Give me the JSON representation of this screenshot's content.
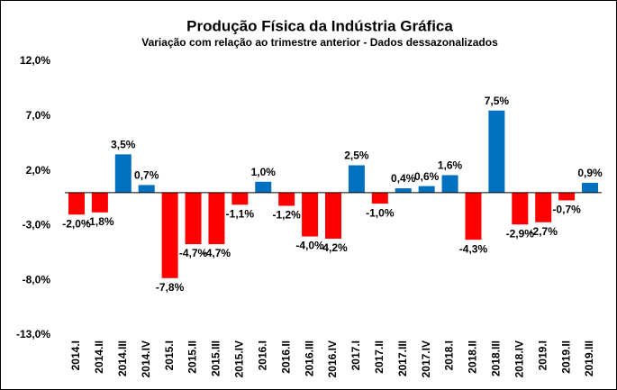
{
  "chart_data": {
    "type": "bar",
    "title": "Produção Física da Indústria Gráfica",
    "subtitle": "Variação com relação ao trimestre anterior - Dados dessazonalizados",
    "categories": [
      "2014.I",
      "2014.II",
      "2014.III",
      "2014.IV",
      "2015.I",
      "2015.II",
      "2015.III",
      "2015.IV",
      "2016.I",
      "2016.II",
      "2016.III",
      "2016.IV",
      "2017.I",
      "2017.II",
      "2017.III",
      "2017.IV",
      "2018.I",
      "2018.II",
      "2018.III",
      "2018.IV",
      "2019.I",
      "2019.II",
      "2019.III"
    ],
    "values": [
      -2.0,
      -1.8,
      3.5,
      0.7,
      -7.8,
      -4.7,
      -4.7,
      -1.1,
      1.0,
      -1.2,
      -4.0,
      -4.2,
      2.5,
      -1.0,
      0.4,
      0.6,
      1.6,
      -4.3,
      7.5,
      -2.9,
      -2.7,
      -0.7,
      0.9
    ],
    "value_labels": [
      "-2,0%",
      "-1,8%",
      "3,5%",
      "0,7%",
      "-7,8%",
      "-4,7%",
      "-4,7%",
      "-1,1%",
      "1,0%",
      "-1,2%",
      "-4,0%",
      "-4,2%",
      "2,5%",
      "-1,0%",
      "0,4%",
      "0,6%",
      "1,6%",
      "-4,3%",
      "7,5%",
      "-2,9%",
      "-2,7%",
      "-0,7%",
      "0,9%"
    ],
    "positive_color": "#0070c0",
    "negative_color": "#ff0000",
    "ylim": [
      -13,
      12
    ],
    "yticks": [
      {
        "value": -13,
        "label": "-13,0%"
      },
      {
        "value": -8,
        "label": "-8,0%"
      },
      {
        "value": -3,
        "label": "-3,0%"
      },
      {
        "value": 2,
        "label": "2,0%"
      },
      {
        "value": 7,
        "label": "7,0%"
      },
      {
        "value": 12,
        "label": "12,0%"
      }
    ],
    "grid": false
  }
}
